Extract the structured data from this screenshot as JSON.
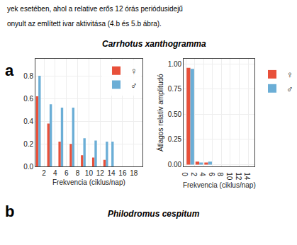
{
  "chart_data": [
    {
      "type": "bar",
      "title": "Carrhotus xanthogramma",
      "subtitle": "Philodromus cespitum",
      "annotations": [
        "yek esetében, ahol a relative erős 12 órás periódusidejű",
        "onyult az említett ivar aktivitása (4.b és 5.b ábra).",
        "a",
        "b"
      ],
      "xlabel": "Frekvencia (ciklus/nap)",
      "xlim": [
        0.5,
        19.5
      ],
      "ylim": [
        0,
        0.95
      ],
      "xticks": [
        2,
        4,
        6,
        8,
        10,
        12,
        14,
        16,
        18
      ],
      "yticks": [
        {
          "value": 0.0,
          "label": "0.0"
        },
        0.2,
        0.4,
        0.6,
        0.8
      ],
      "grid": true,
      "legend": "upper right",
      "series": [
        {
          "name": "♀",
          "color": "#e8503a",
          "x": [
            1,
            3,
            5,
            7,
            9,
            11,
            13
          ],
          "values": [
            0.62,
            0.38,
            0.22,
            0.2,
            0.1,
            0.08,
            0.06
          ]
        },
        {
          "name": "♂",
          "color": "#6baed6",
          "x": [
            1,
            3,
            5,
            7,
            9,
            11,
            13,
            14
          ],
          "values": [
            0.8,
            0.55,
            0.52,
            0.52,
            0.25,
            0.23,
            0.22,
            0.22
          ]
        }
      ]
    },
    {
      "type": "bar",
      "xlabel": "Frekvencia (ciklus/nap)",
      "ylabel": "Átlagos relatív amplitudó",
      "xlim": [
        -0.5,
        15.5
      ],
      "ylim": [
        -0.02,
        1.05
      ],
      "xticks": [
        0,
        2,
        4,
        6,
        8,
        10,
        12,
        14
      ],
      "yticks": [
        {
          "value": 0.0,
          "label": "0.00"
        },
        0.25,
        {
          "value": 0.5,
          "label": "0.50"
        },
        {
          "value": 0.75,
          "label": "0.75"
        },
        {
          "value": 1.0,
          "label": "1.00"
        }
      ],
      "grid": true,
      "legend": "right",
      "series": [
        {
          "name": "♀",
          "color": "#e8503a",
          "x": [
            1,
            3,
            5
          ],
          "values": [
            0.96,
            0.03,
            0.02
          ]
        },
        {
          "name": "♂",
          "color": "#6baed6",
          "x": [
            1,
            3,
            5
          ],
          "values": [
            0.95,
            0.02,
            0.03
          ]
        }
      ]
    }
  ]
}
